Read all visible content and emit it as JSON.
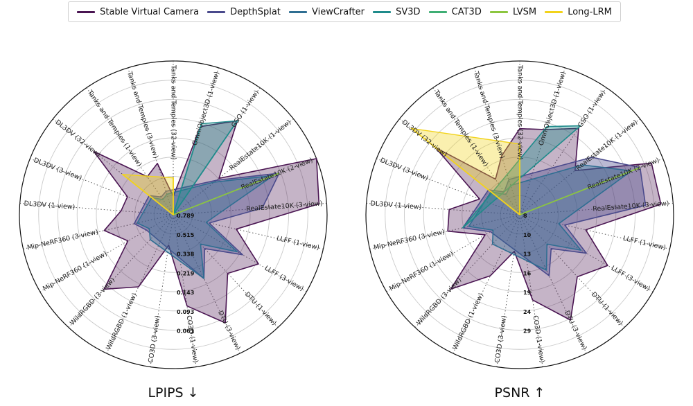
{
  "legend": [
    {
      "name": "Stable Virtual Camera",
      "color": "#4a1552"
    },
    {
      "name": "DepthSplat",
      "color": "#4a4a8c"
    },
    {
      "name": "ViewCrafter",
      "color": "#2f6e92"
    },
    {
      "name": "SV3D",
      "color": "#1f8b8b"
    },
    {
      "name": "CAT3D",
      "color": "#3fae74"
    },
    {
      "name": "LVSM",
      "color": "#8cc63f"
    },
    {
      "name": "Long-LRM",
      "color": "#f2d31b"
    }
  ],
  "chart_data": [
    {
      "type": "radar",
      "title": "LPIPS ↓",
      "axes": [
        "Tanks and Temples (32-view)",
        "OmniObject3D (1-view)",
        "GSO (1-view)",
        "RealEstate10K (1-view)",
        "RealEstate10K (2-view)",
        "RealEstate10K (3-view)",
        "LLFF (1-view)",
        "LLFF (3-view)",
        "DTU (1-view)",
        "DTU (3-view)",
        "CO3D (1-view)",
        "CO3D (3-view)",
        "WildRGBD (1-view)",
        "WildRGBD (3-view)",
        "Mip-NeRF360 (1-view)",
        "Mip-NeRF360 (3-view)",
        "DL3DV (1-view)",
        "DL3DV (3-view)",
        "DL3DV (32-view)",
        "Tanks and Temples (1-view)",
        "Tanks and Temples (3-view)"
      ],
      "ring_labels": [
        "0.789",
        "0.515",
        "0.338",
        "0.219",
        "0.143",
        "0.093",
        "0.061"
      ],
      "series": [
        {
          "name": "Stable Virtual Camera",
          "values": [
            0.12,
            0.6,
            0.74,
            0.38,
            1.0,
            0.95,
            0.42,
            0.64,
            0.52,
            0.78,
            0.6,
            0.2,
            0.52,
            0.66,
            0.34,
            0.46,
            0.34,
            0.32,
            0.66,
            0.3,
            0.35
          ]
        },
        {
          "name": "DepthSplat",
          "values": [
            null,
            null,
            null,
            0.36,
            0.74,
            0.58,
            0.24,
            0.52,
            0.3,
            0.46,
            null,
            null,
            null,
            null,
            0.2,
            0.26,
            null,
            null,
            0.2,
            0.14,
            0.16
          ]
        },
        {
          "name": "ViewCrafter",
          "values": [
            null,
            null,
            null,
            0.34,
            0.7,
            null,
            0.22,
            0.48,
            0.26,
            0.46,
            null,
            null,
            null,
            0.22,
            0.18,
            0.24,
            null,
            null,
            0.18,
            0.12,
            0.14
          ]
        },
        {
          "name": "SV3D",
          "values": [
            null,
            0.62,
            0.74,
            null,
            null,
            null,
            null,
            null,
            null,
            null,
            null,
            null,
            null,
            null,
            null,
            null,
            null,
            null,
            null,
            null,
            null
          ]
        },
        {
          "name": "CAT3D",
          "values": [
            null,
            null,
            null,
            null,
            null,
            null,
            null,
            null,
            null,
            null,
            null,
            null,
            null,
            null,
            null,
            null,
            null,
            null,
            null,
            null,
            null
          ]
        },
        {
          "name": "LVSM",
          "values": [
            null,
            null,
            null,
            null,
            0.74,
            null,
            null,
            null,
            null,
            null,
            null,
            null,
            null,
            null,
            null,
            null,
            null,
            null,
            null,
            null,
            null
          ]
        },
        {
          "name": "Long-LRM",
          "values": [
            0.24,
            null,
            null,
            null,
            null,
            null,
            null,
            null,
            null,
            null,
            null,
            null,
            null,
            null,
            null,
            null,
            null,
            null,
            0.42,
            null,
            null
          ]
        }
      ]
    },
    {
      "type": "radar",
      "title": "PSNR ↑",
      "axes": [
        "Tanks and Temples (32-view)",
        "OmniObject3D (1-view)",
        "GSO (1-view)",
        "RealEstate10K (1-view)",
        "RealEstate10K (2-view)",
        "RealEstate10K (3-view)",
        "LLFF (1-view)",
        "LLFF (3-view)",
        "DTU (1-view)",
        "DTU (3-view)",
        "CO3D (1-view)",
        "CO3D (3-view)",
        "WildRGBD (1-view)",
        "WildRGBD (3-view)",
        "Mip-NeRF360 (1-view)",
        "Mip-NeRF360 (3-view)",
        "DL3DV (1-view)",
        "DL3DV (3-view)",
        "DL3DV (32-view)",
        "Tanks and Temples (1-view)",
        "Tanks and Temples (3-view)"
      ],
      "ring_labels": [
        "8",
        "10",
        "13",
        "16",
        "19",
        "24",
        "29"
      ],
      "series": [
        {
          "name": "Stable Virtual Camera",
          "values": [
            0.56,
            0.58,
            0.68,
            0.46,
            0.92,
            0.92,
            0.44,
            0.66,
            0.55,
            0.76,
            0.56,
            0.24,
            0.44,
            0.66,
            0.26,
            0.48,
            0.46,
            0.28,
            0.7,
            0.28,
            0.4
          ]
        },
        {
          "name": "DepthSplat",
          "values": [
            null,
            null,
            null,
            0.6,
            0.84,
            0.82,
            0.3,
            0.5,
            0.3,
            0.44,
            null,
            null,
            null,
            null,
            0.22,
            0.38,
            null,
            null,
            0.26,
            0.18,
            0.24
          ]
        },
        {
          "name": "ViewCrafter",
          "values": [
            null,
            null,
            null,
            0.52,
            0.78,
            null,
            0.26,
            0.46,
            0.26,
            0.4,
            null,
            null,
            null,
            0.26,
            0.2,
            0.34,
            null,
            null,
            0.24,
            0.16,
            0.2
          ]
        },
        {
          "name": "SV3D",
          "values": [
            null,
            0.6,
            0.7,
            null,
            null,
            null,
            null,
            null,
            null,
            null,
            null,
            null,
            null,
            null,
            null,
            0.38,
            null,
            null,
            null,
            null,
            null
          ]
        },
        {
          "name": "CAT3D",
          "values": [
            null,
            null,
            null,
            null,
            null,
            null,
            null,
            null,
            null,
            null,
            null,
            null,
            null,
            null,
            null,
            null,
            null,
            null,
            null,
            null,
            null
          ]
        },
        {
          "name": "LVSM",
          "values": [
            null,
            null,
            null,
            null,
            0.84,
            null,
            null,
            null,
            null,
            null,
            null,
            null,
            null,
            null,
            null,
            null,
            null,
            null,
            null,
            null,
            null
          ]
        },
        {
          "name": "Long-LRM",
          "values": [
            0.46,
            null,
            null,
            null,
            null,
            null,
            null,
            null,
            null,
            null,
            null,
            null,
            null,
            null,
            null,
            null,
            null,
            null,
            0.9,
            null,
            null
          ]
        }
      ]
    }
  ]
}
